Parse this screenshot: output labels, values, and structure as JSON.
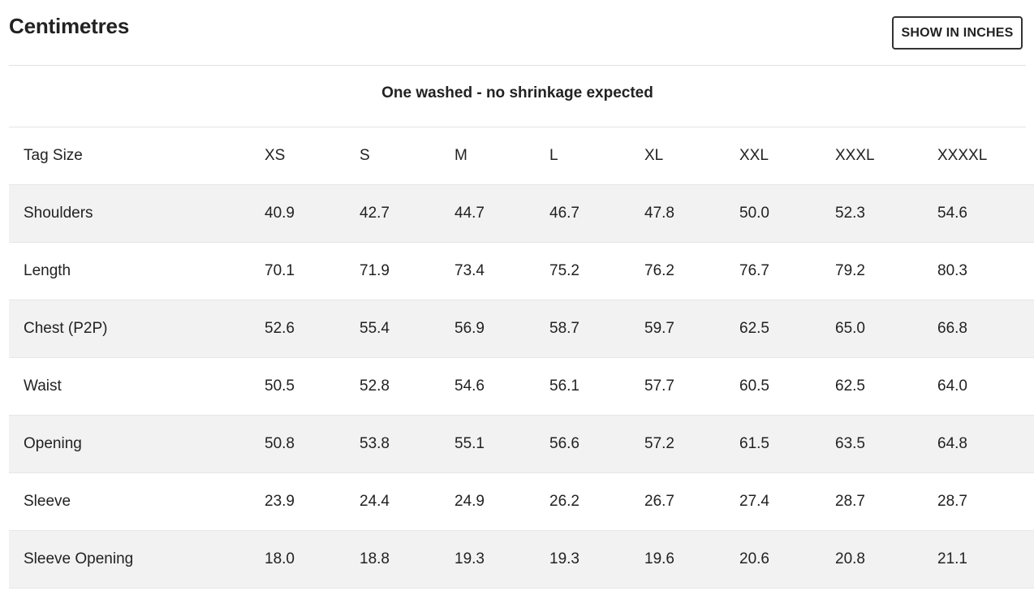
{
  "header": {
    "title": "Centimetres",
    "toggle_label": "SHOW IN INCHES"
  },
  "note": "One washed - no shrinkage expected",
  "table": {
    "columns": [
      "Tag Size",
      "XS",
      "S",
      "M",
      "L",
      "XL",
      "XXL",
      "XXXL",
      "XXXXL"
    ],
    "rows": [
      {
        "label": "Shoulders",
        "values": [
          "40.9",
          "42.7",
          "44.7",
          "46.7",
          "47.8",
          "50.0",
          "52.3",
          "54.6"
        ]
      },
      {
        "label": "Length",
        "values": [
          "70.1",
          "71.9",
          "73.4",
          "75.2",
          "76.2",
          "76.7",
          "79.2",
          "80.3"
        ]
      },
      {
        "label": "Chest (P2P)",
        "values": [
          "52.6",
          "55.4",
          "56.9",
          "58.7",
          "59.7",
          "62.5",
          "65.0",
          "66.8"
        ]
      },
      {
        "label": "Waist",
        "values": [
          "50.5",
          "52.8",
          "54.6",
          "56.1",
          "57.7",
          "60.5",
          "62.5",
          "64.0"
        ]
      },
      {
        "label": "Opening",
        "values": [
          "50.8",
          "53.8",
          "55.1",
          "56.6",
          "57.2",
          "61.5",
          "63.5",
          "64.8"
        ]
      },
      {
        "label": "Sleeve",
        "values": [
          "23.9",
          "24.4",
          "24.9",
          "26.2",
          "26.7",
          "27.4",
          "28.7",
          "28.7"
        ]
      },
      {
        "label": "Sleeve Opening",
        "values": [
          "18.0",
          "18.8",
          "19.3",
          "19.3",
          "19.6",
          "20.6",
          "20.8",
          "21.1"
        ]
      }
    ]
  }
}
